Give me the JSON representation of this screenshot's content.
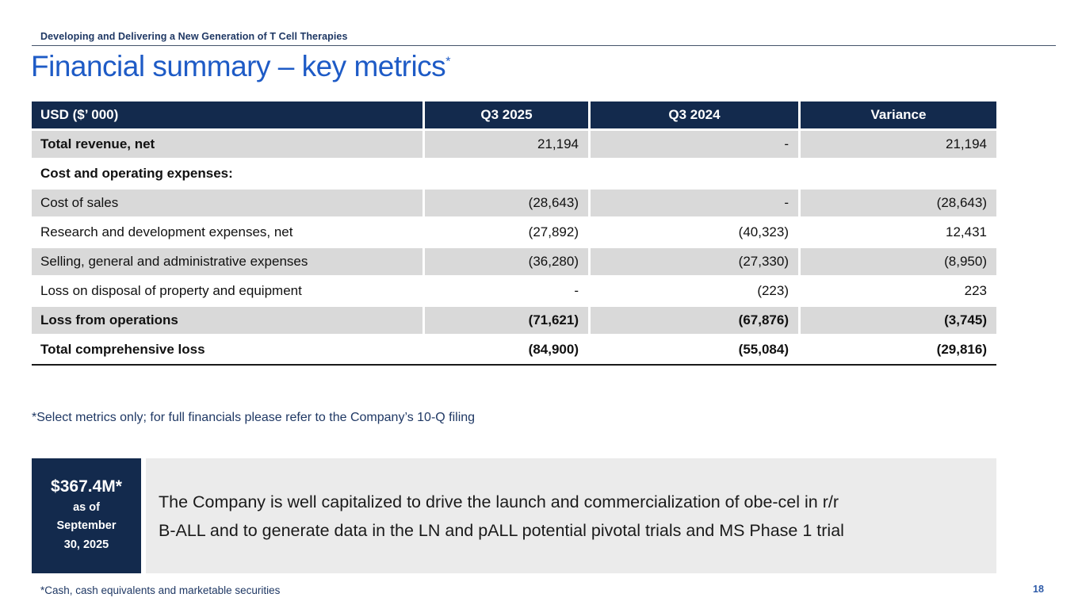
{
  "page": {
    "eyebrow": "Developing and Delivering a New Generation of T Cell Therapies",
    "title": "Financial summary – key metrics",
    "title_superscript": "*",
    "page_number": "18"
  },
  "colors": {
    "navy": "#132a4d",
    "title_blue": "#1e5bc6",
    "footnote_navy": "#1f3864",
    "row_gray": "#d9d9d9",
    "callout_gray": "#ebebeb",
    "page_number_blue": "#2d5aa8"
  },
  "table": {
    "columns": [
      "USD ($’ 000)",
      "Q3 2025",
      "Q3 2024",
      "Variance"
    ],
    "rows": [
      {
        "label": "Total revenue, net",
        "bold": true,
        "values_bold": false,
        "shaded": true,
        "values": [
          "21,194",
          "-",
          "21,194"
        ]
      },
      {
        "label": "Cost and operating expenses:",
        "bold": true,
        "values_bold": false,
        "shaded": false,
        "values": [
          "",
          "",
          ""
        ]
      },
      {
        "label": "Cost of sales",
        "bold": false,
        "values_bold": false,
        "shaded": true,
        "values": [
          "(28,643)",
          "-",
          "(28,643)"
        ]
      },
      {
        "label": "Research and development expenses, net",
        "bold": false,
        "values_bold": false,
        "shaded": false,
        "values": [
          "(27,892)",
          "(40,323)",
          "12,431"
        ]
      },
      {
        "label": "Selling, general and administrative expenses",
        "bold": false,
        "values_bold": false,
        "shaded": true,
        "values": [
          "(36,280)",
          "(27,330)",
          "(8,950)"
        ]
      },
      {
        "label": "Loss on disposal of property and equipment",
        "bold": false,
        "values_bold": false,
        "shaded": false,
        "values": [
          "-",
          "(223)",
          "223"
        ]
      },
      {
        "label": "Loss from operations",
        "bold": true,
        "values_bold": true,
        "shaded": true,
        "values": [
          "(71,621)",
          "(67,876)",
          "(3,745)"
        ]
      },
      {
        "label": "Total comprehensive loss",
        "bold": true,
        "values_bold": true,
        "shaded": false,
        "values": [
          "(84,900)",
          "(55,084)",
          "(29,816)"
        ]
      }
    ]
  },
  "footnotes": {
    "table_note": "*Select metrics only; for full financials please refer to the Company’s 10-Q filing",
    "cash_note": "*Cash, cash equivalents and marketable securities"
  },
  "callout": {
    "amount": "$367.4M*",
    "as_of_lines": [
      "as of",
      "September",
      "30, 2025"
    ],
    "text_lines": [
      "The Company is well capitalized to drive the launch and commercialization of obe-cel in r/r",
      "B-ALL and to generate data in the LN and pALL potential pivotal trials and MS Phase 1 trial"
    ]
  }
}
